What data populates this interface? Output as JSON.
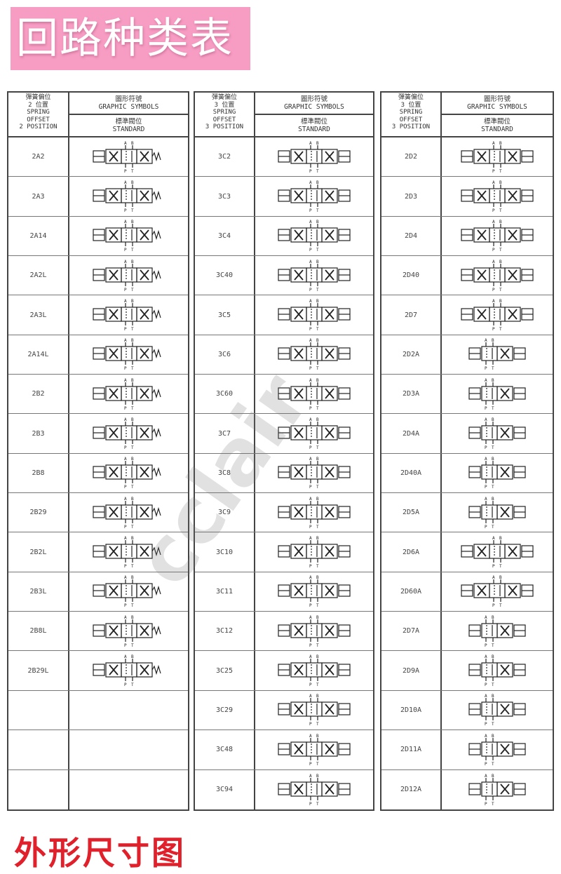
{
  "title": "回路种类表",
  "bottom_title": "外形尺寸图",
  "watermark": "cclair",
  "colors": {
    "title_bg": "#f79cc3",
    "bottom_title": "#e0202a"
  },
  "tables": [
    {
      "header": {
        "type_lines": [
          "彈簧偏位",
          "2 位置",
          "SPRING",
          "OFFSET",
          "2 POSITION"
        ],
        "graphic": [
          "圖形符號",
          "GRAPHIC SYMBOLS"
        ],
        "standard": [
          "標準閥位",
          "STANDARD"
        ]
      },
      "codes": [
        "2A2",
        "2A3",
        "2A14",
        "2A2L",
        "2A3L",
        "2A14L",
        "2B2",
        "2B3",
        "2B8",
        "2B29",
        "2B2L",
        "2B3L",
        "2B8L",
        "2B29L",
        "",
        "",
        ""
      ]
    },
    {
      "header": {
        "type_lines": [
          "彈簧偏位",
          "3 位置",
          "SPRING",
          "OFFSET",
          "3 POSITION"
        ],
        "graphic": [
          "圖形符號",
          "GRAPHIC SYMBOLS"
        ],
        "standard": [
          "標準閥位",
          "STANDARD"
        ]
      },
      "codes": [
        "3C2",
        "3C3",
        "3C4",
        "3C40",
        "3C5",
        "3C6",
        "3C60",
        "3C7",
        "3C8",
        "3C9",
        "3C10",
        "3C11",
        "3C12",
        "3C25",
        "3C29",
        "3C48",
        "3C94"
      ]
    },
    {
      "header": {
        "type_lines": [
          "彈簧偏位",
          "3 位置",
          "SPRING",
          "OFFSET",
          "3 POSITION"
        ],
        "graphic": [
          "圖形符號",
          "GRAPHIC SYMBOLS"
        ],
        "standard": [
          "標準閥位",
          "STANDARD"
        ]
      },
      "codes": [
        "2D2",
        "2D3",
        "2D4",
        "2D40",
        "2D7",
        "2D2A",
        "2D3A",
        "2D4A",
        "2D40A",
        "2D5A",
        "2D6A",
        "2D60A",
        "2D7A",
        "2D9A",
        "2D10A",
        "2D11A",
        "2D12A"
      ]
    }
  ]
}
